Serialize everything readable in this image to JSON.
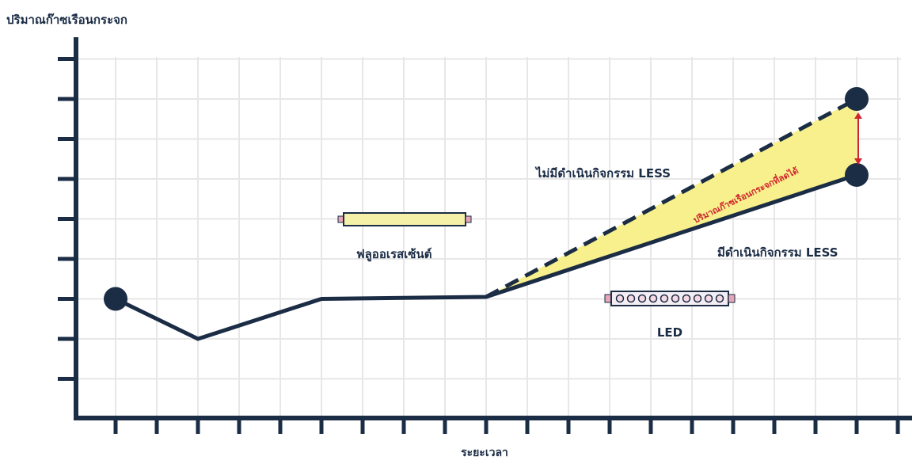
{
  "chart_data": {
    "type": "line",
    "title": "",
    "ylabel": "ปริมาณก๊าซเรือนกระจก",
    "xlabel": "ระยะเวลา",
    "x": [
      0,
      2,
      5,
      9,
      18
    ],
    "grid": true,
    "series": [
      {
        "name": "ไม่มีดำเนินกิจกรรม LESS",
        "style": "dashed",
        "points": [
          [
            0,
            3
          ],
          [
            2,
            2
          ],
          [
            5,
            3
          ],
          [
            9,
            3.05
          ],
          [
            18,
            8
          ]
        ]
      },
      {
        "name": "มีดำเนินกิจกรรม LESS",
        "style": "solid",
        "points": [
          [
            0,
            3
          ],
          [
            2,
            2
          ],
          [
            5,
            3
          ],
          [
            9,
            3.05
          ],
          [
            18,
            6.1
          ]
        ]
      }
    ],
    "annotations": {
      "fluorescent_label": "ฟลูออเรสเซ้นต์",
      "led_label": "LED",
      "reduction_label": "ปริมาณก๊าซเรือนกระจกที่ลดได้"
    },
    "colors": {
      "line": "#1b2c45",
      "fill": "#f7f08c",
      "arrow": "#d0262e",
      "grid": "#e7e7e7",
      "fluorescent_tube": "#f5f1a8",
      "led_tube": "#f4eef4"
    }
  }
}
